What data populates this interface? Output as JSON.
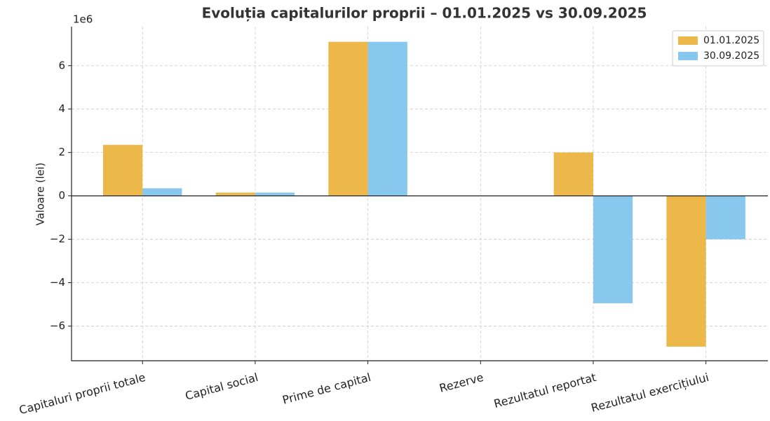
{
  "chart_data": {
    "type": "bar",
    "title": "Evoluția capitalurilor proprii – 01.01.2025 vs 30.09.2025",
    "y_label": "Valoare (lei)",
    "y_offset_label": "1e6",
    "categories": [
      "Capitaluri proprii totale",
      "Capital social",
      "Prime de capital",
      "Rezerve",
      "Rezultatul reportat",
      "Rezultatul exercițiului"
    ],
    "series": [
      {
        "name": "01.01.2025",
        "color": "#ecb84a",
        "values": [
          2.35,
          0.15,
          7.1,
          0.02,
          2.0,
          -6.95
        ]
      },
      {
        "name": "30.09.2025",
        "color": "#88c8ee",
        "values": [
          0.35,
          0.15,
          7.1,
          0.01,
          -4.95,
          -2.0
        ]
      }
    ],
    "ylim": [
      -7.6,
      7.8
    ],
    "yticks": [
      {
        "value": -6,
        "label": "−6"
      },
      {
        "value": -4,
        "label": "−4"
      },
      {
        "value": -2,
        "label": "−2"
      },
      0,
      2,
      4,
      6
    ],
    "grid": true,
    "legend": "upper right"
  }
}
